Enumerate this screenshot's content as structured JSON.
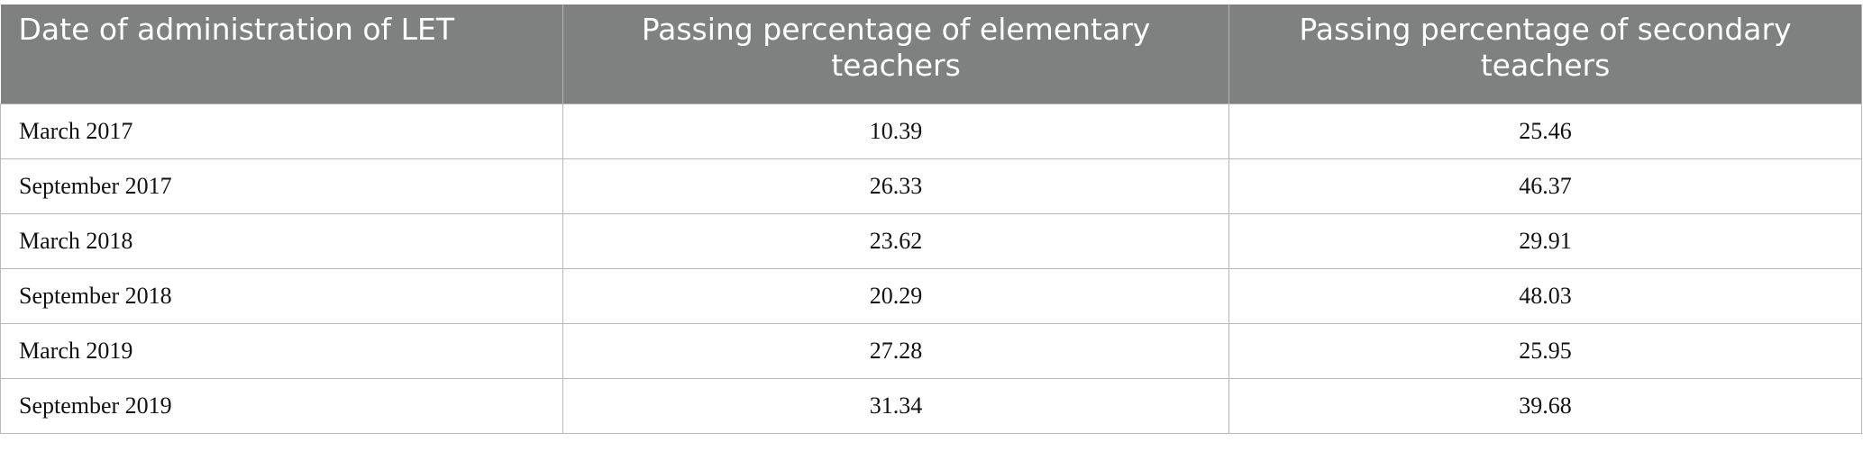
{
  "table": {
    "header": [
      "Date of administration of LET",
      "Passing percentage of elementary teachers",
      "Passing percentage of secondary teachers"
    ],
    "rows": [
      [
        "March 2017",
        "10.39",
        "25.46"
      ],
      [
        "September 2017",
        "26.33",
        "46.37"
      ],
      [
        "March 2018",
        "23.62",
        "29.91"
      ],
      [
        "September 2018",
        "20.29",
        "48.03"
      ],
      [
        "March 2019",
        "27.28",
        "25.95"
      ],
      [
        "September 2019",
        "31.34",
        "39.68"
      ]
    ]
  }
}
